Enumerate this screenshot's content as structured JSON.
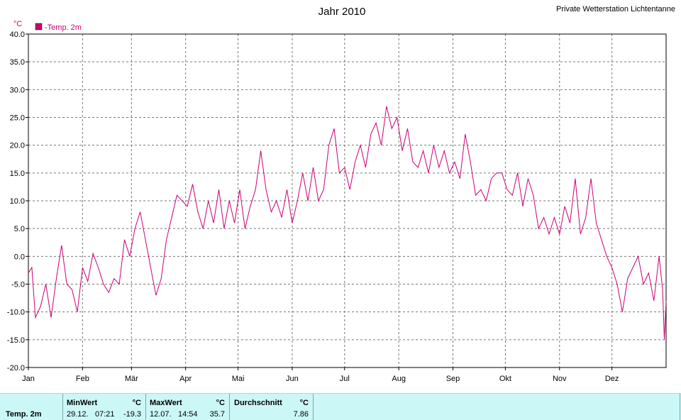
{
  "header": {
    "title": "Jahr 2010",
    "station": "Private Wetterstation Lichtentanne"
  },
  "chart_data": {
    "type": "line",
    "title": "Jahr 2010",
    "ylabel": "°C",
    "ylim": [
      -20,
      40
    ],
    "yticks": [
      "40.0",
      "35.0",
      "30.0",
      "25.0",
      "20.0",
      "15.0",
      "10.0",
      "5.0",
      "0.0",
      "-5.0",
      "-10.0",
      "-15.0",
      "-20.0"
    ],
    "months": [
      "Jan",
      "Feb",
      "Mär",
      "Apr",
      "Mai",
      "Jun",
      "Jul",
      "Aug",
      "Sep",
      "Okt",
      "Nov",
      "Dez"
    ],
    "xlim_days": [
      0,
      365
    ],
    "grid": true,
    "legend": "top-left",
    "series": [
      {
        "name": "-Temp. 2m",
        "color": "#cc0077",
        "x": [
          0,
          2,
          4,
          7,
          10,
          13,
          16,
          19,
          22,
          25,
          28,
          31,
          34,
          37,
          40,
          43,
          46,
          49,
          52,
          55,
          58,
          61,
          64,
          67,
          70,
          73,
          76,
          79,
          82,
          85,
          88,
          91,
          94,
          97,
          100,
          103,
          106,
          109,
          112,
          115,
          118,
          121,
          124,
          127,
          130,
          133,
          136,
          139,
          142,
          145,
          148,
          151,
          154,
          157,
          160,
          163,
          166,
          169,
          172,
          175,
          178,
          181,
          184,
          187,
          190,
          193,
          196,
          199,
          202,
          205,
          208,
          211,
          214,
          217,
          220,
          223,
          226,
          229,
          232,
          235,
          238,
          241,
          244,
          247,
          250,
          253,
          256,
          259,
          262,
          265,
          268,
          271,
          274,
          277,
          280,
          283,
          286,
          289,
          292,
          295,
          298,
          301,
          304,
          307,
          310,
          313,
          316,
          319,
          322,
          325,
          328,
          331,
          334,
          337,
          340,
          343,
          346,
          349,
          352,
          355,
          358,
          361,
          363,
          364,
          365
        ],
        "values": [
          -3.0,
          -2.0,
          -11.0,
          -9.0,
          -5.0,
          -11.0,
          -4.0,
          2.0,
          -5.0,
          -6.0,
          -10.0,
          -2.0,
          -4.5,
          0.5,
          -2.0,
          -5.0,
          -6.5,
          -4.0,
          -5.0,
          3.0,
          0.0,
          5.0,
          8.0,
          3.0,
          -2.0,
          -7.0,
          -4.0,
          3.0,
          7.0,
          11.0,
          10.0,
          9.0,
          13.0,
          8.0,
          5.0,
          10.0,
          6.0,
          12.0,
          5.0,
          10.0,
          6.0,
          12.0,
          5.0,
          9.0,
          12.0,
          19.0,
          12.0,
          8.0,
          10.0,
          7.0,
          12.0,
          6.0,
          10.0,
          15.0,
          10.0,
          16.0,
          10.0,
          12.0,
          20.0,
          23.0,
          15.0,
          16.0,
          12.0,
          17.0,
          20.0,
          16.0,
          22.0,
          24.0,
          20.0,
          27.0,
          23.0,
          25.0,
          19.0,
          23.0,
          17.0,
          16.0,
          19.0,
          15.0,
          20.0,
          16.0,
          19.0,
          15.0,
          17.0,
          14.0,
          22.0,
          17.0,
          11.0,
          12.0,
          10.0,
          14.0,
          15.0,
          15.0,
          12.0,
          11.0,
          15.0,
          9.0,
          14.0,
          11.0,
          5.0,
          7.0,
          4.0,
          7.0,
          4.0,
          9.0,
          6.0,
          14.0,
          4.0,
          7.0,
          14.0,
          6.0,
          3.0,
          0.0,
          -2.0,
          -5.0,
          -10.0,
          -4.0,
          -2.0,
          0.0,
          -5.0,
          -3.0,
          -8.0,
          0.0,
          -6.0,
          -15.0,
          -8.0
        ]
      }
    ]
  },
  "stats": {
    "row_label": "Temp. 2m",
    "min": {
      "header": "MinWert",
      "unit": "°C",
      "date": "29.12.",
      "time": "07:21",
      "value": "-19.3"
    },
    "max": {
      "header": "MaxWert",
      "unit": "°C",
      "date": "12.07.",
      "time": "14:54",
      "value": "35.7"
    },
    "avg": {
      "header": "Durchschnitt",
      "unit": "°C",
      "value": "7.86"
    }
  }
}
